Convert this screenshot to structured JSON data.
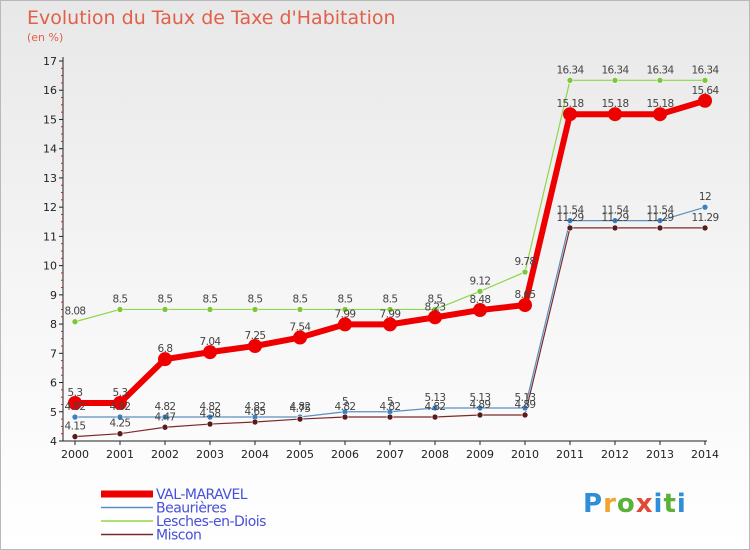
{
  "header": {
    "title": "Evolution du Taux de Taxe d'Habitation",
    "subtitle": "(en %)"
  },
  "logo": {
    "text": "Proxiti",
    "letters": [
      "P",
      "r",
      "o",
      "x",
      "i",
      "t",
      "i"
    ],
    "colors": [
      "#2e8fd8",
      "#f2a431",
      "#5bb13a",
      "#e14a36",
      "#2e8fd8",
      "#5bb13a",
      "#2e8fd8"
    ]
  },
  "chart_data": {
    "type": "line",
    "x": [
      2000,
      2001,
      2002,
      2003,
      2004,
      2005,
      2006,
      2007,
      2008,
      2009,
      2010,
      2011,
      2012,
      2013,
      2014
    ],
    "ylim": [
      4,
      17
    ],
    "yticks": [
      4,
      5,
      6,
      7,
      8,
      9,
      10,
      11,
      12,
      13,
      14,
      15,
      16,
      17
    ],
    "grid": false,
    "legend_position": "bottom-left",
    "series": [
      {
        "name": "VAL-MARAVEL",
        "color": "#ee0000",
        "width": 6,
        "marker": 7,
        "values": [
          5.3,
          5.3,
          6.8,
          7.04,
          7.25,
          7.54,
          7.99,
          7.99,
          8.23,
          8.48,
          8.65,
          15.18,
          15.18,
          15.18,
          15.64
        ],
        "labels": [
          "5.3",
          "5.3",
          "6.8",
          "7.04",
          "7.25",
          "7.54",
          "7.99",
          "7.99",
          "8.23",
          "8.48",
          "8.65",
          "15.18",
          "15.18",
          "15.18",
          "15.64"
        ]
      },
      {
        "name": "Beaurières",
        "color": "#5b8fbf",
        "width": 1.2,
        "marker": 3,
        "values": [
          4.82,
          4.82,
          4.82,
          4.82,
          4.82,
          4.82,
          5,
          5,
          5.13,
          5.13,
          5.13,
          11.54,
          11.54,
          11.54,
          12
        ],
        "labels": [
          "4.82",
          "4.82",
          "4.82",
          "4.82",
          "4.82",
          "4.82",
          "5",
          "5",
          "5.13",
          "5.13",
          "5.13",
          "11.54",
          "11.54",
          "11.54",
          "12"
        ]
      },
      {
        "name": "Lesches-en-Diois",
        "color": "#8fd64a",
        "width": 1.2,
        "marker": 3,
        "values": [
          8.08,
          8.5,
          8.5,
          8.5,
          8.5,
          8.5,
          8.5,
          8.5,
          8.5,
          9.12,
          9.78,
          16.34,
          16.34,
          16.34,
          16.34
        ],
        "labels": [
          "8.08",
          "8.5",
          "8.5",
          "8.5",
          "8.5",
          "8.5",
          "8.5",
          "8.5",
          "8.5",
          "9.12",
          "9.78",
          "16.34",
          "16.34",
          "16.34",
          "16.34"
        ]
      },
      {
        "name": "Miscon",
        "color": "#7a2a2a",
        "width": 1.2,
        "marker": 3,
        "values": [
          4.15,
          4.25,
          4.47,
          4.58,
          4.65,
          4.75,
          4.82,
          4.82,
          4.82,
          4.89,
          4.89,
          11.29,
          11.29,
          11.29,
          11.29
        ],
        "labels": [
          "4.15",
          "4.25",
          "4.47",
          "4.58",
          "4.65",
          "4.75",
          "4.82",
          "4.82",
          "4.82",
          "4.89",
          "4.89",
          "11.29",
          "11.29",
          "11.29",
          "11.29"
        ]
      }
    ]
  }
}
